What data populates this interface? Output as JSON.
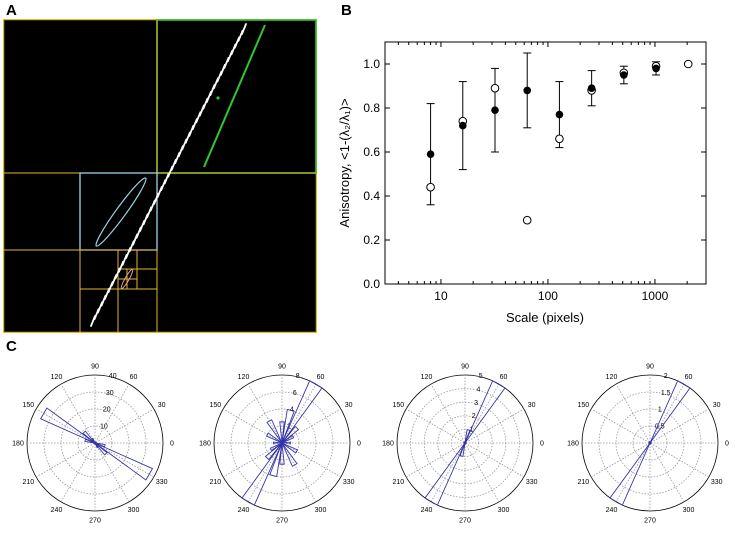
{
  "panels": {
    "a": "A",
    "b": "B",
    "c": "C"
  },
  "chart_data": {
    "type": "scatter",
    "xlabel": "Scale (pixels)",
    "ylabel": "Anisotropy, <1-(λ₂/λ₁)>",
    "xscale": "log",
    "xlim": [
      3,
      3000
    ],
    "ylim": [
      0,
      1.1
    ],
    "xticks": [
      "10",
      "100",
      "1000"
    ],
    "yticks": [
      "0.0",
      "0.2",
      "0.4",
      "0.6",
      "0.8",
      "1.0"
    ],
    "series": [
      {
        "fill": "black",
        "x": [
          8,
          16,
          32,
          64,
          128,
          256,
          512,
          1024
        ],
        "y": [
          0.59,
          0.72,
          0.79,
          0.88,
          0.77,
          0.89,
          0.95,
          0.98
        ],
        "yerr": [
          0.23,
          0.2,
          0.19,
          0.17,
          0.15,
          0.08,
          0.04,
          0.03
        ]
      },
      {
        "fill": "white",
        "x": [
          8,
          16,
          32,
          64,
          128,
          256,
          512,
          1024,
          2048
        ],
        "y": [
          0.44,
          0.74,
          0.89,
          0.29,
          0.66,
          0.88,
          0.96,
          0.99,
          1.0
        ]
      }
    ]
  },
  "rose_plots": [
    {
      "rings": [
        "10",
        "20",
        "30",
        "40"
      ],
      "rmax": 40,
      "angles": [
        "90",
        "60",
        "30",
        "0",
        "330",
        "300",
        "270",
        "240",
        "210",
        "180",
        "150",
        "120"
      ],
      "petals": [
        [
          150,
          35
        ],
        [
          330,
          37
        ],
        [
          135,
          9
        ],
        [
          315,
          9
        ],
        [
          165,
          6
        ],
        [
          345,
          6
        ],
        [
          120,
          3
        ],
        [
          300,
          3
        ]
      ]
    },
    {
      "rings": [
        "2",
        "4",
        "6",
        "8"
      ],
      "rmax": 8,
      "angles": [
        "90",
        "60",
        "30",
        "0",
        "330",
        "300",
        "270",
        "240",
        "210",
        "180",
        "150",
        "120"
      ],
      "petals": [
        [
          60,
          8
        ],
        [
          240,
          8
        ],
        [
          75,
          4
        ],
        [
          255,
          4
        ],
        [
          120,
          3
        ],
        [
          300,
          3
        ],
        [
          150,
          2
        ],
        [
          330,
          2
        ],
        [
          90,
          2.5
        ],
        [
          270,
          2.5
        ],
        [
          45,
          2.5
        ],
        [
          225,
          2.5
        ],
        [
          30,
          1.5
        ],
        [
          210,
          1.5
        ],
        [
          0,
          1
        ],
        [
          180,
          1
        ]
      ]
    },
    {
      "rings": [
        "1",
        "2",
        "3",
        "4",
        "5"
      ],
      "rmax": 5,
      "angles": [
        "90",
        "60",
        "30",
        "0",
        "330",
        "300",
        "270",
        "240",
        "210",
        "180",
        "150",
        "120"
      ],
      "petals": [
        [
          60,
          5
        ],
        [
          240,
          5
        ],
        [
          75,
          1
        ],
        [
          255,
          1
        ]
      ]
    },
    {
      "rings": [
        "0.5",
        "1",
        "1.5",
        "2"
      ],
      "rmax": 2,
      "angles": [
        "90",
        "60",
        "30",
        "0",
        "330",
        "300",
        "270",
        "240",
        "210",
        "180",
        "150",
        "120"
      ],
      "petals": [
        [
          60,
          2
        ],
        [
          240,
          2
        ]
      ]
    }
  ]
}
